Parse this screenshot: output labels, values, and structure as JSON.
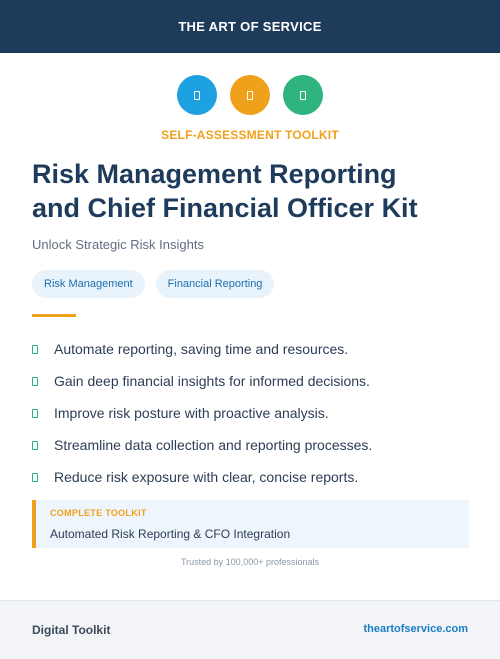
{
  "header": {
    "brand": "THE ART OF SERVICE"
  },
  "icons": [
    {
      "name": "document-icon",
      "color": "#1da1e0"
    },
    {
      "name": "clipboard-icon",
      "color": "#f0a11b"
    },
    {
      "name": "checklist-icon",
      "color": "#2fb37f"
    }
  ],
  "kit": {
    "label": "SELF-ASSESSMENT TOOLKIT",
    "title_line1": "Risk Management Reporting",
    "title_line2": "and Chief Financial Officer Kit",
    "tagline": "Unlock Strategic Risk Insights"
  },
  "tags": [
    "Risk Management",
    "Financial Reporting"
  ],
  "benefits": [
    "Automate reporting, saving time and resources.",
    "Gain deep financial insights for informed decisions.",
    "Improve risk posture with proactive analysis.",
    "Streamline data collection and reporting processes.",
    "Reduce risk exposure with clear, concise reports."
  ],
  "callout": {
    "label": "COMPLETE TOOLKIT",
    "text": "Automated Risk Reporting & CFO Integration"
  },
  "trusted": "Trusted by 100,000+ professionals",
  "footer": {
    "left": "Digital Toolkit",
    "right": "theartofservice.com"
  },
  "colors": {
    "navy": "#1f3b5c",
    "accent_orange": "#f0a11b",
    "accent_blue": "#1da1e0",
    "accent_green": "#2fb37f"
  }
}
